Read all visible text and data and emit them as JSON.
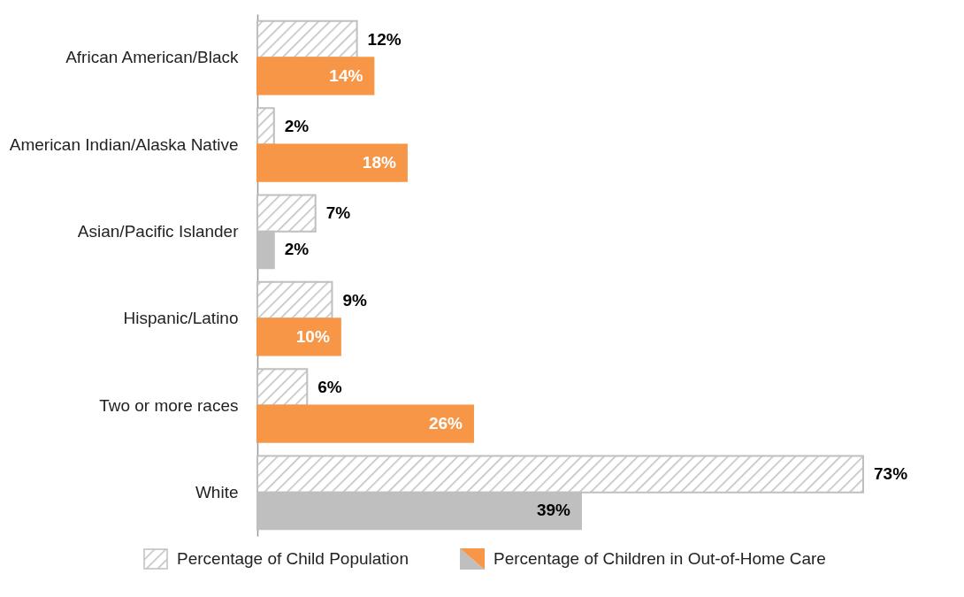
{
  "chart_data": {
    "type": "bar",
    "orientation": "horizontal",
    "categories": [
      "African American/Black",
      "American Indian/Alaska Native",
      "Asian/Pacific Islander",
      "Hispanic/Latino",
      "Two or more races",
      "White"
    ],
    "series": [
      {
        "name": "Percentage of Child Population",
        "color": "#bfbfbf",
        "values": [
          12,
          2,
          7,
          9,
          6,
          73
        ],
        "value_labels": [
          "12%",
          "2%",
          "7%",
          "9%",
          "6%",
          "73%"
        ]
      },
      {
        "name": "Percentage of Children in Out-of-Home Care",
        "colors": [
          "#f79646",
          "#f79646",
          "#bfbfbf",
          "#f79646",
          "#f79646",
          "#bfbfbf"
        ],
        "values": [
          14,
          18,
          2,
          10,
          26,
          39
        ],
        "value_labels": [
          "14%",
          "18%",
          "2%",
          "10%",
          "26%",
          "39%"
        ]
      }
    ],
    "legend": "bottom"
  }
}
